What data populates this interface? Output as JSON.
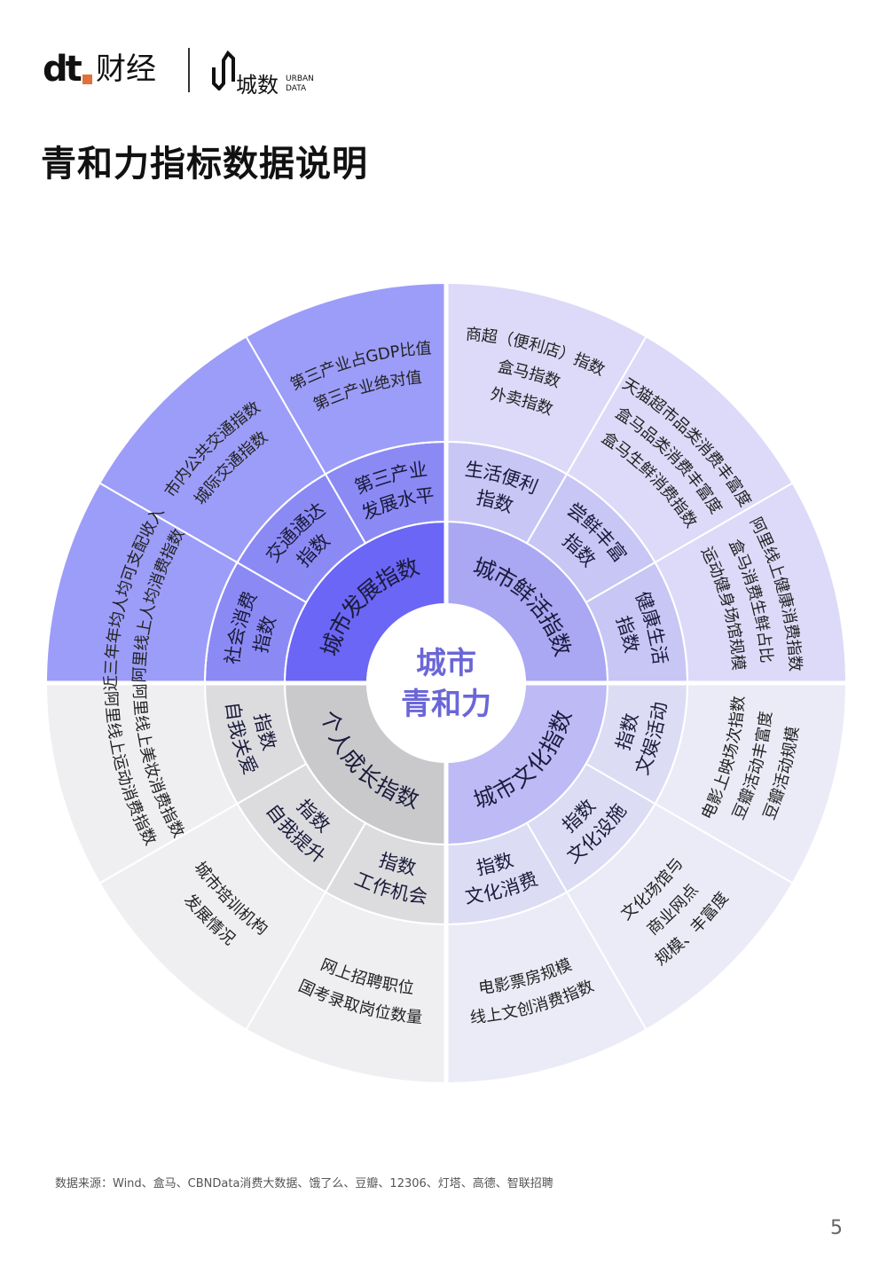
{
  "header": {
    "logo_dt": "dt",
    "logo_caijing": "财经",
    "logo_chengshu": "城数",
    "logo_urban": "URBAN",
    "logo_data": "DATA"
  },
  "title": "青和力指标数据说明",
  "colors": {
    "accent": "#6b66f5",
    "center_text": "#6b66d8",
    "city_development": [
      "#6b66f5",
      "#8b8af5",
      "#9c9df8"
    ],
    "city_freshness": [
      "#aaa7f3",
      "#c8c6f5",
      "#dcdaf8"
    ],
    "city_culture": [
      "#bdbaf6",
      "#dcdcf4",
      "#ebebf7"
    ],
    "personal_growth": [
      "#c9c9cc",
      "#dcdcdf",
      "#efeff2"
    ]
  },
  "chart_data": {
    "type": "sunburst",
    "center": [
      "城市",
      "青和力"
    ],
    "categories": [
      {
        "key": "city_development",
        "label": "城市发展指数",
        "children": [
          {
            "label": [
              "社会消费",
              "指数"
            ],
            "items": [
              "近三年年均人均可支配收入",
              "阿里线上人均消费指数"
            ]
          },
          {
            "label": [
              "交通通达",
              "指数"
            ],
            "items": [
              "市内公共交通指数",
              "城际交通指数"
            ]
          },
          {
            "label": [
              "第三产业",
              "发展水平"
            ],
            "items": [
              "第三产业占GDP比值",
              "第三产业绝对值"
            ]
          }
        ]
      },
      {
        "key": "city_freshness",
        "label": "城市鲜活指数",
        "children": [
          {
            "label": [
              "生活便利",
              "指数"
            ],
            "items": [
              "商超（便利店）指数",
              "盒马指数",
              "外卖指数"
            ]
          },
          {
            "label": [
              "尝鲜丰富",
              "指数"
            ],
            "items": [
              "天猫超市品类消费丰富度",
              "盒马品类消费丰富度",
              "盒马生鲜消费指数"
            ]
          },
          {
            "label": [
              "健康生活",
              "指数"
            ],
            "items": [
              "阿里线上健康消费指数",
              "盒马消费生鲜占比",
              "运动健身场馆规模"
            ]
          }
        ]
      },
      {
        "key": "city_culture",
        "label": "城市文化指数",
        "children": [
          {
            "label": [
              "指数",
              "文娱活动"
            ],
            "items": [
              "电影上映场次指数",
              "豆瓣活动丰富度",
              "豆瓣活动规模"
            ]
          },
          {
            "label": [
              "指数",
              "文化设施"
            ],
            "items": [
              "文化场馆与",
              "商业网点",
              "规模、丰富度"
            ]
          },
          {
            "label": [
              "指数",
              "文化消费"
            ],
            "items": [
              "电影票房规模",
              "线上文创消费指数"
            ]
          }
        ]
      },
      {
        "key": "personal_growth",
        "label": "个人成长指数",
        "children": [
          {
            "label": [
              "指数",
              "工作机会"
            ],
            "items": [
              "网上招聘职位",
              "国考录取岗位数量"
            ]
          },
          {
            "label": [
              "指数",
              "自我提升"
            ],
            "items": [
              "城市培训机构",
              "发展情况"
            ]
          },
          {
            "label": [
              "指数",
              "自我关爱"
            ],
            "items": [
              "阿里线上美妆消费指数",
              "阿里线上运动消费指数"
            ]
          }
        ]
      }
    ]
  },
  "footer": {
    "source": "数据来源：Wind、盒马、CBNData消费大数据、饿了么、豆瓣、12306、灯塔、高德、智联招聘",
    "page_number": "5"
  }
}
